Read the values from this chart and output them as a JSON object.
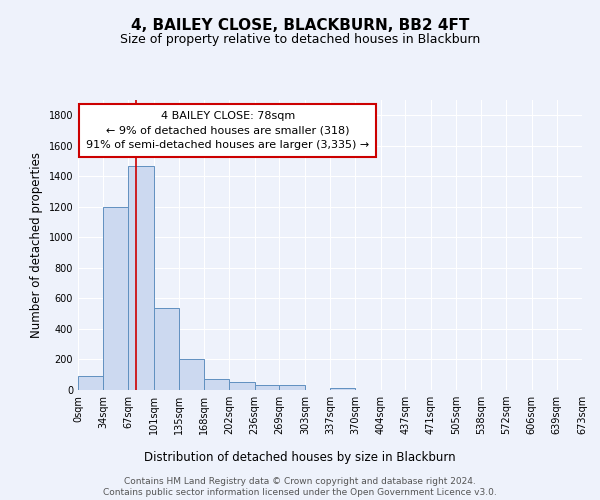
{
  "title": "4, BAILEY CLOSE, BLACKBURN, BB2 4FT",
  "subtitle": "Size of property relative to detached houses in Blackburn",
  "xlabel": "Distribution of detached houses by size in Blackburn",
  "ylabel": "Number of detached properties",
  "footer_line1": "Contains HM Land Registry data © Crown copyright and database right 2024.",
  "footer_line2": "Contains public sector information licensed under the Open Government Licence v3.0.",
  "bin_edges": [
    0,
    34,
    67,
    101,
    135,
    168,
    202,
    236,
    269,
    303,
    337,
    370,
    404,
    437,
    471,
    505,
    538,
    572,
    606,
    639,
    673
  ],
  "bin_labels": [
    "0sqm",
    "34sqm",
    "67sqm",
    "101sqm",
    "135sqm",
    "168sqm",
    "202sqm",
    "236sqm",
    "269sqm",
    "303sqm",
    "337sqm",
    "370sqm",
    "404sqm",
    "437sqm",
    "471sqm",
    "505sqm",
    "538sqm",
    "572sqm",
    "606sqm",
    "639sqm",
    "673sqm"
  ],
  "bar_heights": [
    90,
    1200,
    1470,
    540,
    205,
    70,
    50,
    35,
    30,
    0,
    15,
    0,
    0,
    0,
    0,
    0,
    0,
    0,
    0,
    0
  ],
  "bar_color": "#ccd9f0",
  "bar_edge_color": "#6090c0",
  "ylim": [
    0,
    1900
  ],
  "yticks": [
    0,
    200,
    400,
    600,
    800,
    1000,
    1200,
    1400,
    1600,
    1800
  ],
  "property_line_x": 78,
  "property_line_color": "#cc0000",
  "annotation_title": "4 BAILEY CLOSE: 78sqm",
  "annotation_line1": "← 9% of detached houses are smaller (318)",
  "annotation_line2": "91% of semi-detached houses are larger (3,335) →",
  "annotation_box_color": "#ffffff",
  "annotation_box_edge_color": "#cc0000",
  "background_color": "#eef2fb",
  "grid_color": "#ffffff",
  "title_fontsize": 11,
  "subtitle_fontsize": 9,
  "axis_label_fontsize": 8.5,
  "tick_fontsize": 7,
  "annotation_fontsize": 8,
  "footer_fontsize": 6.5
}
